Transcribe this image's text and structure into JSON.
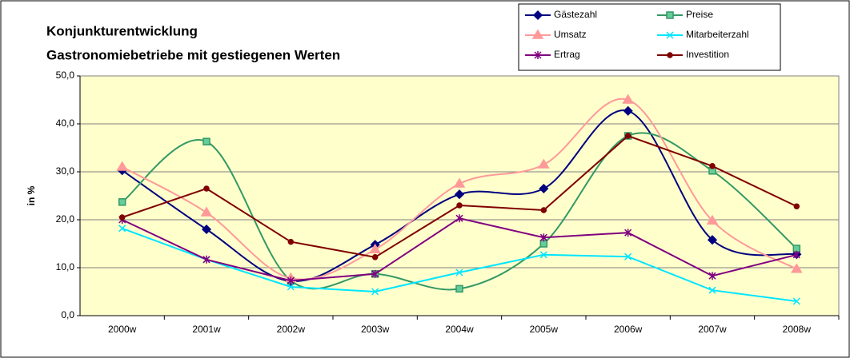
{
  "chart_data": {
    "type": "line",
    "title": "Konjunkturentwicklung",
    "subtitle": "Gastronomiebetriebe mit gestiegenen Werten",
    "y_label": "in %",
    "categories": [
      "2000w",
      "2001w",
      "2002w",
      "2003w",
      "2004w",
      "2005w",
      "2006w",
      "2007w",
      "2008w"
    ],
    "ylim": [
      0,
      50
    ],
    "yticks": [
      {
        "value": 0,
        "label": "0,0"
      },
      {
        "value": 10,
        "label": "10,0"
      },
      {
        "value": 20,
        "label": "20,0"
      },
      {
        "value": 30,
        "label": "30,0"
      },
      {
        "value": 40,
        "label": "40,0"
      },
      {
        "value": 50,
        "label": "50,0"
      }
    ],
    "grid": true,
    "legend": "top-right",
    "series": [
      {
        "name": "Gästezahl",
        "color": "#000080",
        "marker": "diamond",
        "smooth": true,
        "values": [
          30.3,
          18.0,
          7.2,
          14.8,
          25.3,
          26.5,
          42.7,
          15.8,
          12.8
        ]
      },
      {
        "name": "Preise",
        "color": "#339966",
        "marker": "square",
        "smooth": true,
        "values": [
          23.7,
          36.3,
          7.3,
          8.7,
          5.6,
          15.0,
          37.5,
          30.2,
          14.0
        ]
      },
      {
        "name": "Umsatz",
        "color": "#ff9999",
        "marker": "triangle",
        "smooth": true,
        "values": [
          31.0,
          21.5,
          7.8,
          13.8,
          27.5,
          31.5,
          45.0,
          19.8,
          9.7
        ]
      },
      {
        "name": "Mitarbeiterzahl",
        "color": "#00e5ff",
        "marker": "x",
        "smooth": false,
        "values": [
          18.2,
          11.7,
          6.0,
          5.0,
          9.0,
          12.7,
          12.3,
          5.3,
          3.0
        ]
      },
      {
        "name": "Ertrag",
        "color": "#800080",
        "marker": "star",
        "smooth": false,
        "values": [
          20.0,
          11.7,
          7.3,
          8.7,
          20.3,
          16.3,
          17.3,
          8.3,
          12.7
        ]
      },
      {
        "name": "Investition",
        "color": "#800000",
        "marker": "circle",
        "smooth": false,
        "values": [
          20.5,
          26.5,
          15.4,
          12.2,
          23.0,
          22.0,
          37.5,
          31.2,
          22.8
        ]
      }
    ]
  }
}
